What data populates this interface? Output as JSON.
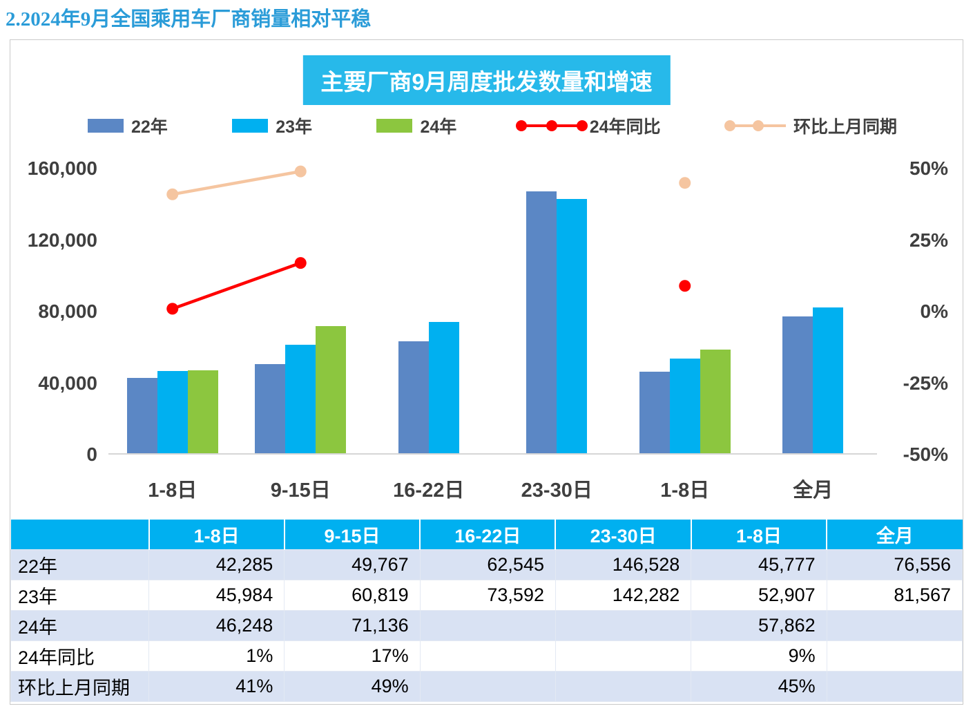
{
  "page": {
    "title": "2.2024年9月全国乘用车厂商销量相对平稳"
  },
  "chart": {
    "title": "主要厂商9月周度批发数量和增速",
    "legend": [
      {
        "label": "22年",
        "type": "bar",
        "color": "#5B87C5"
      },
      {
        "label": "23年",
        "type": "bar",
        "color": "#00B0F0"
      },
      {
        "label": "24年",
        "type": "bar",
        "color": "#8CC63F"
      },
      {
        "label": "24年同比",
        "type": "line",
        "color": "#FF0000",
        "dots": 3
      },
      {
        "label": "环比上月同期",
        "type": "line",
        "color": "#F5C5A0",
        "dots": 2
      }
    ]
  },
  "chart_data": {
    "type": "bar",
    "title": "主要厂商9月周度批发数量和增速",
    "categories": [
      "1-8日",
      "9-15日",
      "16-22日",
      "23-30日",
      "1-8日",
      "全月"
    ],
    "series": [
      {
        "name": "22年",
        "kind": "bar",
        "axis": "left",
        "color": "#5B87C5",
        "values": [
          42285,
          49767,
          62545,
          146528,
          45777,
          76556
        ]
      },
      {
        "name": "23年",
        "kind": "bar",
        "axis": "left",
        "color": "#00B0F0",
        "values": [
          45984,
          60819,
          73592,
          142282,
          52907,
          81567
        ]
      },
      {
        "name": "24年",
        "kind": "bar",
        "axis": "left",
        "color": "#8CC63F",
        "values": [
          46248,
          71136,
          null,
          null,
          57862,
          null
        ]
      },
      {
        "name": "24年同比",
        "kind": "line",
        "axis": "right",
        "color": "#FF0000",
        "values": [
          0.01,
          0.17,
          null,
          null,
          0.09,
          null
        ]
      },
      {
        "name": "环比上月同期",
        "kind": "line",
        "axis": "right",
        "color": "#F5C5A0",
        "values": [
          0.41,
          0.49,
          null,
          null,
          0.45,
          null
        ]
      }
    ],
    "left_axis": {
      "min": 0,
      "max": 160000,
      "ticks": [
        "160,000",
        "120,000",
        "80,000",
        "40,000",
        "0"
      ]
    },
    "right_axis": {
      "min": -0.5,
      "max": 0.5,
      "ticks": [
        "50%",
        "25%",
        "0%",
        "-25%",
        "-50%"
      ]
    },
    "grid": false,
    "legend_position": "top"
  },
  "table": {
    "header": [
      "",
      "1-8日",
      "9-15日",
      "16-22日",
      "23-30日",
      "1-8日",
      "全月"
    ],
    "rows": [
      {
        "label": "22年",
        "cells": [
          "42,285",
          "49,767",
          "62,545",
          "146,528",
          "45,777",
          "76,556"
        ]
      },
      {
        "label": "23年",
        "cells": [
          "45,984",
          "60,819",
          "73,592",
          "142,282",
          "52,907",
          "81,567"
        ]
      },
      {
        "label": "24年",
        "cells": [
          "46,248",
          "71,136",
          "",
          "",
          "57,862",
          ""
        ]
      },
      {
        "label": "24年同比",
        "cells": [
          "1%",
          "17%",
          "",
          "",
          "9%",
          ""
        ]
      },
      {
        "label": "环比上月同期",
        "cells": [
          "41%",
          "49%",
          "",
          "",
          "45%",
          ""
        ]
      }
    ]
  },
  "colors": {
    "page_title": "#2B9CD8",
    "title_banner_bg": "#27B9EA",
    "table_header_bg": "#00B0F0",
    "table_stripe_bg": "#D9E2F3",
    "axis_text": "#3F3F3F",
    "series_22": "#5B87C5",
    "series_23": "#00B0F0",
    "series_24": "#8CC63F",
    "series_yoy": "#FF0000",
    "series_mom": "#F5C5A0"
  }
}
